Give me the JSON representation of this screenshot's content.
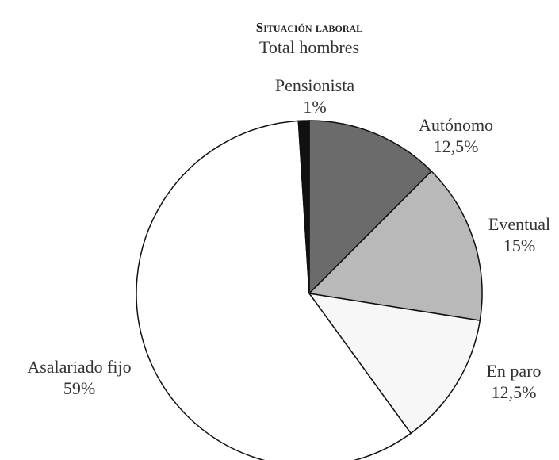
{
  "chart_data": {
    "type": "pie",
    "title": "Situación laboral",
    "subtitle": "Total hombres",
    "categories": [
      "Autónomo",
      "Eventual",
      "En paro",
      "Asalariado fijo",
      "Pensionista"
    ],
    "values": [
      12.5,
      15,
      12.5,
      59,
      1
    ],
    "value_labels": [
      "12,5%",
      "15%",
      "12,5%",
      "59%",
      "1%"
    ],
    "colors": [
      "#6b6b6b",
      "#b9b9b9",
      "#f7f7f7",
      "#ffffff",
      "#111111"
    ]
  }
}
